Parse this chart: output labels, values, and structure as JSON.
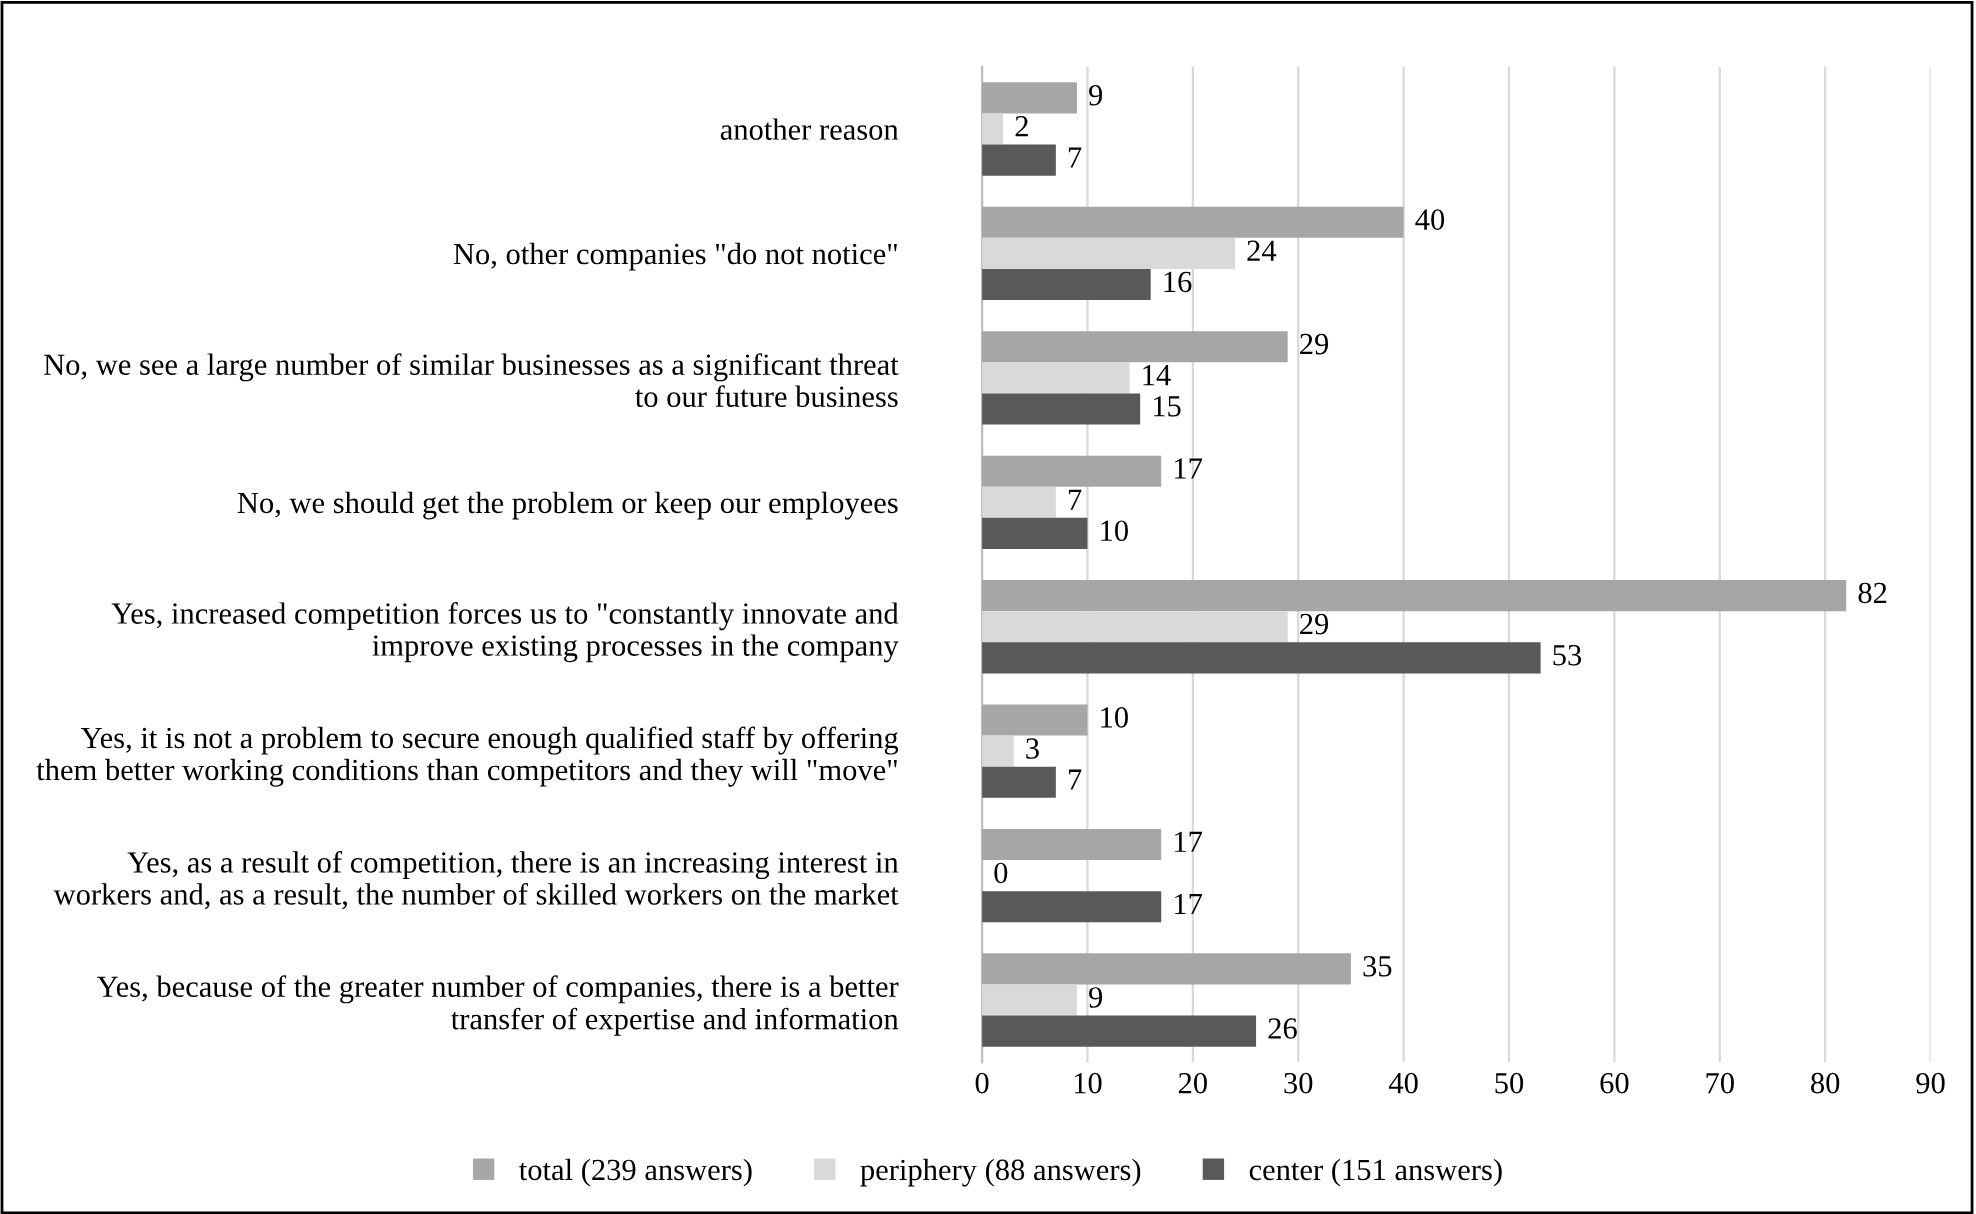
{
  "chart_data": {
    "type": "bar",
    "orientation": "horizontal",
    "categories": [
      "another reason",
      "No, other companies \"do not notice\"",
      "No, we see a large number of similar businesses as a significant threat\nto our future business",
      "No, we should get the problem or keep our employees",
      "Yes, increased competition forces us to \"constantly innovate and\nimprove existing processes in the company",
      "Yes, it is not a problem to secure enough qualified staff by offering\nthem better working conditions than competitors and they will \"move\"",
      "Yes, as a result of competition, there is an increasing interest in\nworkers and, as a result, the number of skilled workers on the market",
      "Yes, because of the greater number of companies, there is a better\ntransfer of expertise and information"
    ],
    "series": [
      {
        "name": "total (239 answers)",
        "color": "#a6a6a6",
        "values": [
          9,
          40,
          29,
          17,
          82,
          10,
          17,
          35
        ]
      },
      {
        "name": "periphery (88 answers)",
        "color": "#d9d9d9",
        "values": [
          2,
          24,
          14,
          7,
          29,
          3,
          0,
          9
        ]
      },
      {
        "name": "center (151 answers)",
        "color": "#595959",
        "values": [
          7,
          16,
          15,
          10,
          53,
          7,
          17,
          26
        ]
      }
    ],
    "xlim": [
      0,
      90
    ],
    "xticks": [
      0,
      10,
      20,
      30,
      40,
      50,
      60,
      70,
      80,
      90
    ],
    "grid": "x",
    "legend": "bottom",
    "data_labels": true
  }
}
